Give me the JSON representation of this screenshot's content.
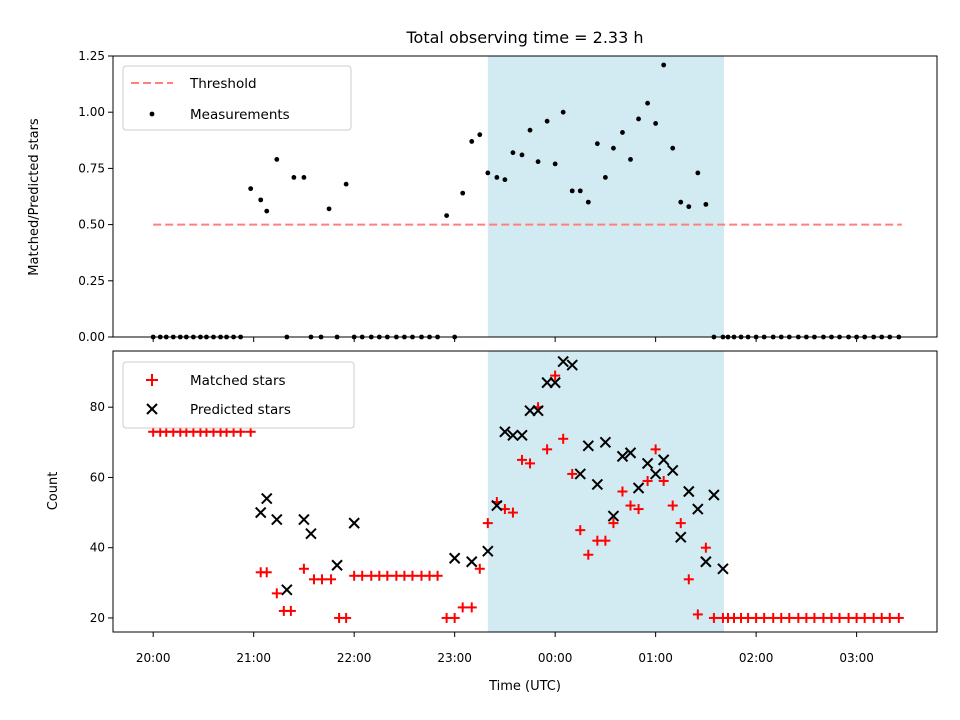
{
  "chart_data": [
    {
      "type": "scatter",
      "title": "Total observing time = 2.33 h",
      "xlabel": "",
      "ylabel": "Matched/Predicted stars",
      "ylim": [
        0,
        1.25
      ],
      "yticks": [
        "0.00",
        "0.25",
        "0.50",
        "0.75",
        "1.00",
        "1.25"
      ],
      "ytick_values": [
        0,
        0.25,
        0.5,
        0.75,
        1.0,
        1.25
      ],
      "xticks": [
        "20:00",
        "21:00",
        "22:00",
        "23:00",
        "00:00",
        "01:00",
        "02:00",
        "03:00"
      ],
      "xlim_hours": [
        19.6,
        27.8
      ],
      "shaded_span_hours": [
        23.33,
        25.68
      ],
      "shade_color": "#add8e6",
      "threshold": {
        "name": "Threshold",
        "value": 0.5,
        "x_range_hours": [
          20.0,
          27.45
        ],
        "color": "#ff7f7f"
      },
      "legend": {
        "placement": "upper-left",
        "entries": [
          "Threshold",
          "Measurements"
        ]
      },
      "series": [
        {
          "name": "Measurements",
          "color": "#000000",
          "x_hours": [
            20.0,
            20.07,
            20.13,
            20.2,
            20.27,
            20.33,
            20.4,
            20.47,
            20.53,
            20.6,
            20.67,
            20.73,
            20.8,
            20.87,
            20.97,
            21.07,
            21.13,
            21.23,
            21.33,
            21.4,
            21.5,
            21.57,
            21.67,
            21.75,
            21.83,
            21.92,
            22.0,
            22.08,
            22.17,
            22.25,
            22.33,
            22.42,
            22.5,
            22.58,
            22.67,
            22.75,
            22.83,
            22.92,
            23.0,
            23.08,
            23.17,
            23.25,
            23.33,
            23.42,
            23.5,
            23.58,
            23.67,
            23.75,
            23.83,
            23.92,
            24.0,
            24.08,
            24.17,
            24.25,
            24.33,
            24.42,
            24.5,
            24.58,
            24.67,
            24.75,
            24.83,
            24.92,
            25.0,
            25.08,
            25.17,
            25.25,
            25.33,
            25.42,
            25.5,
            25.58,
            25.67,
            25.72,
            25.78,
            25.85,
            25.92,
            26.0,
            26.08,
            26.17,
            26.25,
            26.33,
            26.42,
            26.5,
            26.58,
            26.67,
            26.75,
            26.83,
            26.92,
            27.0,
            27.08,
            27.17,
            27.25,
            27.33,
            27.42
          ],
          "values": [
            0,
            0,
            0,
            0,
            0,
            0,
            0,
            0,
            0,
            0,
            0,
            0,
            0,
            0,
            0.66,
            0.61,
            0.56,
            0.79,
            0,
            0.71,
            0.71,
            0,
            0,
            0.57,
            0,
            0.68,
            0,
            0,
            0,
            0,
            0,
            0,
            0,
            0,
            0,
            0,
            0,
            0.54,
            0,
            0.64,
            0.87,
            0.9,
            0.73,
            0.71,
            0.7,
            0.82,
            0.81,
            0.92,
            0.78,
            0.96,
            0.77,
            1.0,
            0.65,
            0.65,
            0.6,
            0.86,
            0.71,
            0.84,
            0.91,
            0.79,
            0.97,
            1.04,
            0.95,
            1.21,
            0.84,
            0.6,
            0.58,
            0.73,
            0.59,
            0,
            0,
            0,
            0,
            0,
            0,
            0,
            0,
            0,
            0,
            0,
            0,
            0,
            0,
            0,
            0,
            0,
            0,
            0,
            0,
            0,
            0,
            0,
            0
          ]
        }
      ]
    },
    {
      "type": "scatter",
      "title": "",
      "xlabel": "Time (UTC)",
      "ylabel": "Count",
      "ylim": [
        16,
        96
      ],
      "yticks": [
        "20",
        "40",
        "60",
        "80"
      ],
      "ytick_values": [
        20,
        40,
        60,
        80
      ],
      "xticks": [
        "20:00",
        "21:00",
        "22:00",
        "23:00",
        "00:00",
        "01:00",
        "02:00",
        "03:00"
      ],
      "xlim_hours": [
        19.6,
        27.8
      ],
      "shaded_span_hours": [
        23.33,
        25.68
      ],
      "shade_color": "#add8e6",
      "legend": {
        "placement": "upper-left",
        "entries": [
          "Matched stars",
          "Predicted stars"
        ]
      },
      "series": [
        {
          "name": "Matched stars",
          "marker": "plus",
          "color": "#ff0000",
          "x_hours": [
            20.0,
            20.07,
            20.13,
            20.2,
            20.27,
            20.33,
            20.4,
            20.47,
            20.53,
            20.6,
            20.67,
            20.73,
            20.8,
            20.87,
            20.97,
            21.07,
            21.13,
            21.23,
            21.3,
            21.37,
            21.5,
            21.6,
            21.68,
            21.77,
            21.85,
            21.92,
            22.0,
            22.08,
            22.17,
            22.25,
            22.33,
            22.42,
            22.5,
            22.58,
            22.67,
            22.75,
            22.83,
            22.92,
            23.0,
            23.08,
            23.17,
            23.25,
            23.33,
            23.42,
            23.5,
            23.58,
            23.67,
            23.75,
            23.83,
            23.92,
            24.0,
            24.08,
            24.17,
            24.25,
            24.33,
            24.42,
            24.5,
            24.58,
            24.67,
            24.75,
            24.83,
            24.92,
            25.0,
            25.08,
            25.17,
            25.25,
            25.33,
            25.42,
            25.5,
            25.58,
            25.67,
            25.72,
            25.78,
            25.85,
            25.92,
            26.0,
            26.08,
            26.17,
            26.25,
            26.33,
            26.42,
            26.5,
            26.58,
            26.67,
            26.75,
            26.83,
            26.92,
            27.0,
            27.08,
            27.17,
            27.25,
            27.33,
            27.42
          ],
          "values": [
            73,
            73,
            73,
            73,
            73,
            73,
            73,
            73,
            73,
            73,
            73,
            73,
            73,
            73,
            73,
            33,
            33,
            27,
            22,
            22,
            34,
            31,
            31,
            31,
            20,
            20,
            32,
            32,
            32,
            32,
            32,
            32,
            32,
            32,
            32,
            32,
            32,
            20,
            20,
            23,
            23,
            34,
            47,
            53,
            51,
            50,
            65,
            64,
            80,
            68,
            89,
            71,
            61,
            45,
            38,
            42,
            42,
            47,
            56,
            52,
            51,
            59,
            68,
            59,
            52,
            47,
            31,
            21,
            40,
            20,
            20,
            20,
            20,
            20,
            20,
            20,
            20,
            20,
            20,
            20,
            20,
            20,
            20,
            20,
            20,
            20,
            20,
            20,
            20,
            20,
            20,
            20,
            20
          ]
        },
        {
          "name": "Predicted stars",
          "marker": "x",
          "color": "#000000",
          "x_hours": [
            21.07,
            21.13,
            21.23,
            21.33,
            21.5,
            21.57,
            21.83,
            22.0,
            23.0,
            23.17,
            23.33,
            23.42,
            23.5,
            23.58,
            23.67,
            23.75,
            23.83,
            23.92,
            24.0,
            24.08,
            24.17,
            24.25,
            24.33,
            24.42,
            24.5,
            24.58,
            24.67,
            24.75,
            24.83,
            24.92,
            25.0,
            25.08,
            25.17,
            25.25,
            25.33,
            25.42,
            25.5,
            25.58,
            25.67
          ],
          "values": [
            50,
            54,
            48,
            28,
            48,
            44,
            35,
            47,
            37,
            36,
            39,
            52,
            73,
            72,
            72,
            79,
            79,
            87,
            87,
            93,
            92,
            61,
            69,
            58,
            70,
            49,
            66,
            67,
            57,
            64,
            61,
            65,
            62,
            43,
            56,
            51,
            36,
            55,
            34
          ]
        }
      ]
    }
  ]
}
